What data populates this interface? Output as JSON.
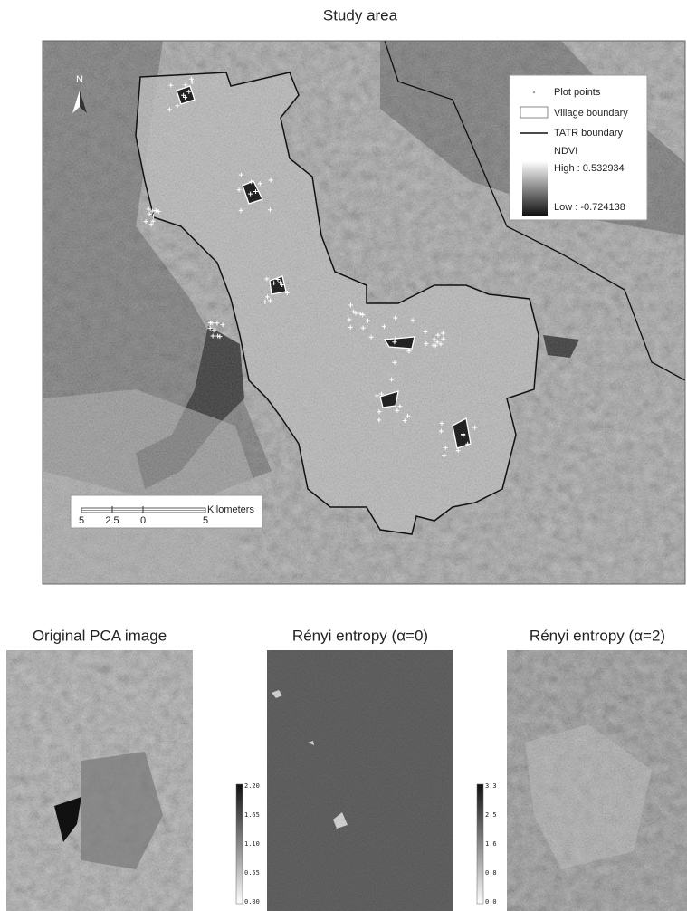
{
  "title": "Study area",
  "map": {
    "north": "N",
    "legend": {
      "items": [
        "Plot points",
        "Village boundary",
        "TATR boundary"
      ],
      "ndvi": "NDVI",
      "high": "High : 0.532934",
      "low": "Low : -0.724138"
    },
    "scale": {
      "labels": [
        "5",
        "2.5",
        "0",
        "5"
      ],
      "unit": "Kilometers"
    }
  },
  "panels": [
    {
      "title": "Original PCA image"
    },
    {
      "title": "Rényi entropy (α=0)",
      "colorbar": [
        "2.20",
        "1.65",
        "1.10",
        "0.55",
        "0.00"
      ]
    },
    {
      "title": "Rényi entropy (α=2)",
      "colorbar": [
        "3.3",
        "2.5",
        "1.6",
        "0.8",
        "0.0"
      ]
    }
  ]
}
